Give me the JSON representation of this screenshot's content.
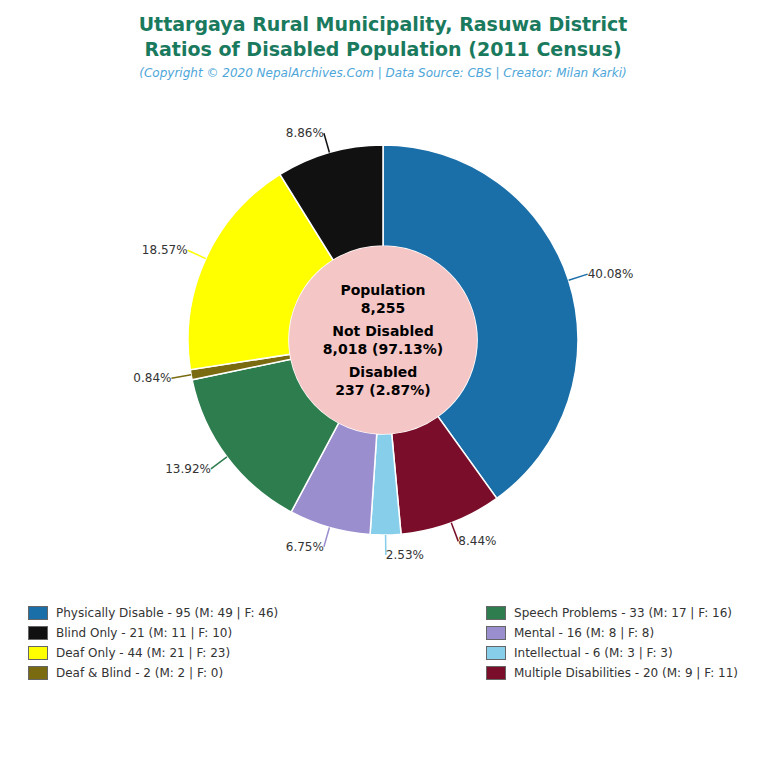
{
  "chart_data": {
    "type": "donut",
    "title": [
      "Uttargaya Rural Municipality, Rasuwa District",
      "Ratios of Disabled Population (2011 Census)"
    ],
    "subtitle": "(Copyright © 2020 NepalArchives.Com | Data Source: CBS | Creator: Milan Karki)",
    "title_color": "#1a7a5e",
    "subtitle_color": "#4da6d9",
    "center_color": "#f5c6c6",
    "categories": [
      "Physically Disable - 95 (M: 49 | F: 46)",
      "Multiple Disabilities - 20 (M: 9 | F: 11)",
      "Intellectual - 6 (M: 3 | F: 3)",
      "Mental - 16 (M: 8 | F: 8)",
      "Speech Problems - 33 (M: 17 | F: 16)",
      "Deaf & Blind - 2 (M: 2 | F: 0)",
      "Deaf Only - 44 (M: 21 | F: 23)",
      "Blind Only - 21 (M: 11 | F: 10)"
    ],
    "values": [
      40.08,
      8.44,
      2.53,
      6.75,
      13.92,
      0.84,
      18.57,
      8.86
    ],
    "value_labels": [
      "40.08%",
      "8.44%",
      "2.53%",
      "6.75%",
      "13.92%",
      "0.84%",
      "18.57%",
      "8.86%"
    ],
    "colors": [
      "#1b6fa8",
      "#7a0e2a",
      "#87ceeb",
      "#9b8ecf",
      "#2e7d4f",
      "#7a6a10",
      "#ffff00",
      "#111111"
    ],
    "data_labels": true,
    "annotations": [
      [
        "Population",
        "8,255"
      ],
      [
        "Not Disabled",
        "8,018 (97.13%)"
      ],
      [
        "Disabled",
        "237 (2.87%)"
      ]
    ],
    "legend": "bottom",
    "legend_items": [
      {
        "label": "Physically Disable - 95 (M: 49 | F: 46)",
        "color": "#1b6fa8"
      },
      {
        "label": "Blind Only - 21 (M: 11 | F: 10)",
        "color": "#111111"
      },
      {
        "label": "Deaf Only - 44 (M: 21 | F: 23)",
        "color": "#ffff00"
      },
      {
        "label": "Deaf & Blind - 2 (M: 2 | F: 0)",
        "color": "#7a6a10"
      },
      {
        "label": "Speech Problems - 33 (M: 17 | F: 16)",
        "color": "#2e7d4f"
      },
      {
        "label": "Mental - 16 (M: 8 | F: 8)",
        "color": "#9b8ecf"
      },
      {
        "label": "Intellectual - 6 (M: 3 | F: 3)",
        "color": "#87ceeb"
      },
      {
        "label": "Multiple Disabilities - 20 (M: 9 | F: 11)",
        "color": "#7a0e2a"
      }
    ]
  }
}
